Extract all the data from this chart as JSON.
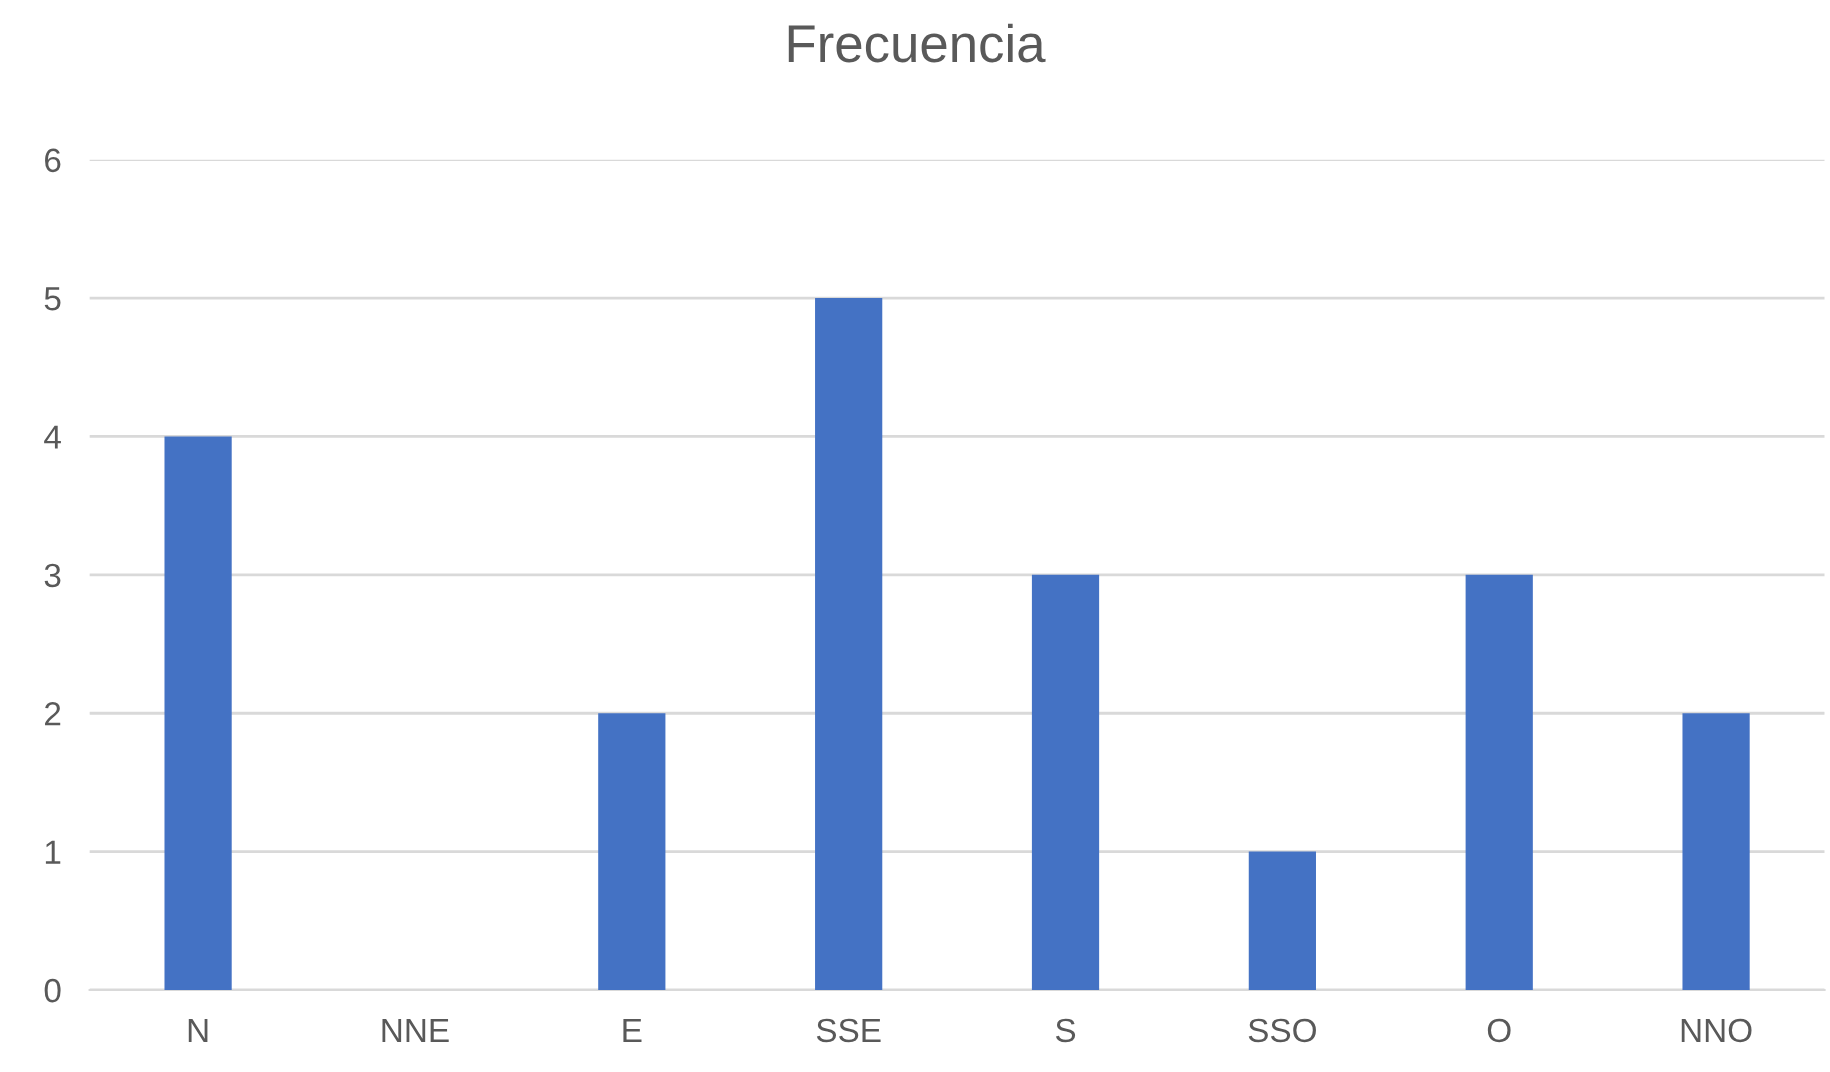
{
  "chart_data": {
    "type": "bar",
    "title": "Frecuencia",
    "categories": [
      "N",
      "NNE",
      "E",
      "SSE",
      "S",
      "SSO",
      "O",
      "NNO"
    ],
    "values": [
      4,
      0,
      2,
      5,
      3,
      1,
      3,
      2
    ],
    "color": "#4472c4",
    "ylim": [
      0,
      6
    ],
    "yticks": [
      0,
      1,
      2,
      3,
      4,
      5,
      6
    ],
    "grid": "y"
  }
}
